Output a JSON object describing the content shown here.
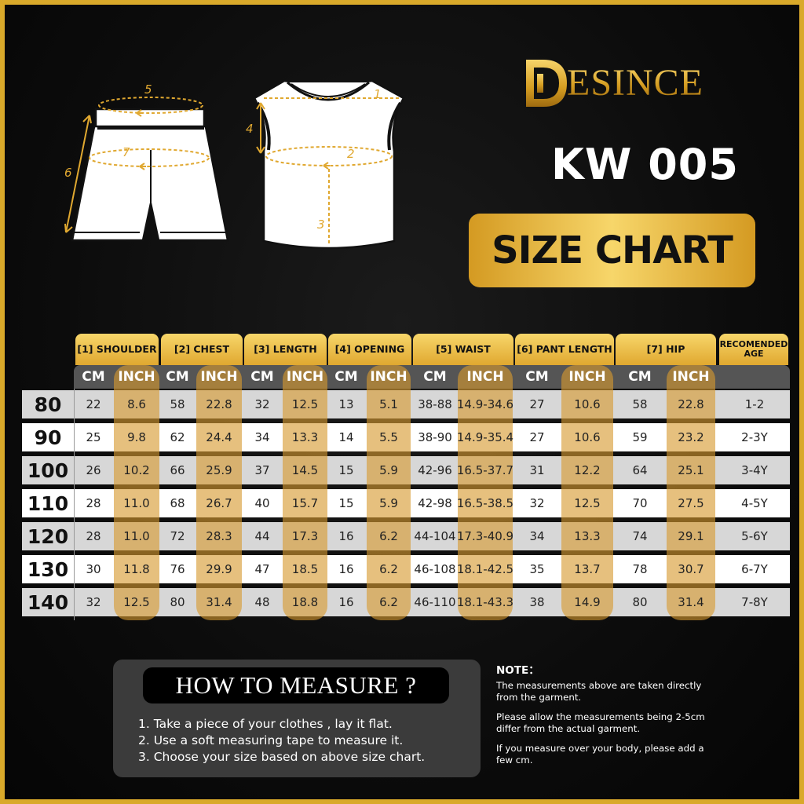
{
  "brand": {
    "name": "ESINCE"
  },
  "model": "KW 005",
  "badge": "SIZE CHART",
  "diagram_labels": {
    "shorts": [
      "5",
      "7",
      "6"
    ],
    "top": [
      "1",
      "4",
      "2",
      "3"
    ]
  },
  "table": {
    "headers": [
      "[1] SHOULDER",
      "[2] CHEST",
      "[3] LENGTH",
      "[4] OPENING",
      "[5] WAIST",
      "[6] PANT LENGTH",
      "[7] HIP",
      "RECOMENDED AGE"
    ],
    "unit_cm": "CM",
    "unit_inch": "INCH",
    "rows": [
      {
        "size": "80",
        "values": [
          "22",
          "8.6",
          "58",
          "22.8",
          "32",
          "12.5",
          "13",
          "5.1",
          "38-88",
          "14.9-34.6",
          "27",
          "10.6",
          "58",
          "22.8",
          "1-2"
        ]
      },
      {
        "size": "90",
        "values": [
          "25",
          "9.8",
          "62",
          "24.4",
          "34",
          "13.3",
          "14",
          "5.5",
          "38-90",
          "14.9-35.4",
          "27",
          "10.6",
          "59",
          "23.2",
          "2-3Y"
        ]
      },
      {
        "size": "100",
        "values": [
          "26",
          "10.2",
          "66",
          "25.9",
          "37",
          "14.5",
          "15",
          "5.9",
          "42-96",
          "16.5-37.7",
          "31",
          "12.2",
          "64",
          "25.1",
          "3-4Y"
        ]
      },
      {
        "size": "110",
        "values": [
          "28",
          "11.0",
          "68",
          "26.7",
          "40",
          "15.7",
          "15",
          "5.9",
          "42-98",
          "16.5-38.5",
          "32",
          "12.5",
          "70",
          "27.5",
          "4-5Y"
        ]
      },
      {
        "size": "120",
        "values": [
          "28",
          "11.0",
          "72",
          "28.3",
          "44",
          "17.3",
          "16",
          "6.2",
          "44-104",
          "17.3-40.9",
          "34",
          "13.3",
          "74",
          "29.1",
          "5-6Y"
        ]
      },
      {
        "size": "130",
        "values": [
          "30",
          "11.8",
          "76",
          "29.9",
          "47",
          "18.5",
          "16",
          "6.2",
          "46-108",
          "18.1-42.5",
          "35",
          "13.7",
          "78",
          "30.7",
          "6-7Y"
        ]
      },
      {
        "size": "140",
        "values": [
          "32",
          "12.5",
          "80",
          "31.4",
          "48",
          "18.8",
          "16",
          "6.2",
          "46-110",
          "18.1-43.3",
          "38",
          "14.9",
          "80",
          "31.4",
          "7-8Y"
        ]
      }
    ]
  },
  "how_to_measure": {
    "title": "HOW TO MEASURE ?",
    "steps": [
      "1. Take a piece of your clothes , lay it flat.",
      "2. Use a soft measuring tape to measure it.",
      "3. Choose your size based on above size chart."
    ]
  },
  "note": {
    "title": "NOTE：",
    "paragraphs": [
      "The measurements above are taken directly from the garment.",
      "Please allow the measurements being 2-5cm differ from the actual garment.",
      "If you measure over your body, please add a few cm."
    ]
  },
  "colors": {
    "gold": "#d9a92a",
    "gold_light": "#f7d66a",
    "inch_band": "#d69a2e",
    "background": "#0c0c0c"
  }
}
